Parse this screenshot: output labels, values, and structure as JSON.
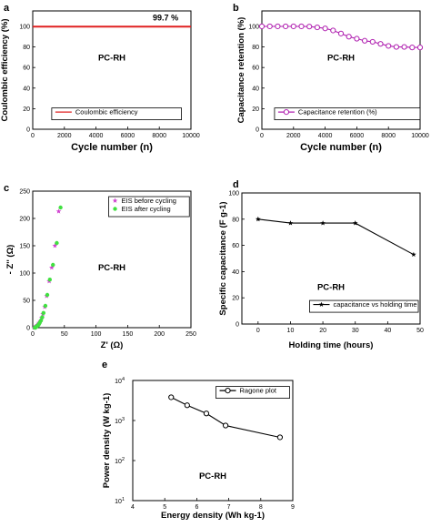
{
  "chart_data": [
    {
      "panel": "a",
      "type": "line",
      "title": "PC-RH",
      "xlabel": "Cycle number (n)",
      "ylabel": "Coulombic efficiency (%)",
      "xlim": [
        0,
        10000
      ],
      "ylim": [
        0,
        115
      ],
      "xticks": [
        0,
        2000,
        4000,
        6000,
        8000,
        10000
      ],
      "yticks": [
        0,
        20,
        40,
        60,
        80,
        100
      ],
      "annotation": "99.7 %",
      "legend": "bottom-right",
      "series": [
        {
          "name": "Coulombic efficiency",
          "color": "#e02020",
          "marker": "none",
          "x": [
            0,
            10000
          ],
          "y": [
            99.7,
            99.7
          ]
        }
      ]
    },
    {
      "panel": "b",
      "type": "line",
      "title": "PC-RH",
      "xlabel": "Cycle number (n)",
      "ylabel": "Capacitance retention (%)",
      "xlim": [
        0,
        10000
      ],
      "ylim": [
        0,
        115
      ],
      "xticks": [
        0,
        2000,
        4000,
        6000,
        8000,
        10000
      ],
      "yticks": [
        0,
        20,
        40,
        60,
        80,
        100
      ],
      "legend": "bottom-right",
      "series": [
        {
          "name": "Capacitance retention (%)",
          "color": "#b020b0",
          "marker": "circle",
          "x": [
            0,
            500,
            1000,
            1500,
            2000,
            2500,
            3000,
            3500,
            4000,
            4500,
            5000,
            5500,
            6000,
            6500,
            7000,
            7500,
            8000,
            8500,
            9000,
            9500,
            10000
          ],
          "y": [
            100,
            100,
            100,
            100,
            100,
            100,
            99.8,
            99,
            98,
            96,
            93,
            90,
            88,
            86,
            85,
            83,
            81,
            80,
            80,
            79.5,
            79.5
          ]
        }
      ]
    },
    {
      "panel": "c",
      "type": "scatter",
      "title": "PC-RH",
      "xlabel": "Z' (Ω)",
      "ylabel": "- Z'' (Ω)",
      "xlim": [
        0,
        250
      ],
      "ylim": [
        0,
        250
      ],
      "xticks": [
        0,
        50,
        100,
        150,
        200,
        250
      ],
      "yticks": [
        0,
        50,
        100,
        150,
        200,
        250
      ],
      "legend": "top-right",
      "series": [
        {
          "name": "EIS before cycling",
          "color": "#d040d0",
          "marker": "star",
          "x": [
            2,
            3,
            4,
            5,
            6,
            7,
            8,
            9,
            10,
            12,
            14,
            16,
            19,
            22,
            26,
            30,
            35,
            41
          ],
          "y": [
            0,
            0,
            1,
            2,
            3,
            4,
            5,
            7,
            9,
            12,
            18,
            25,
            38,
            58,
            85,
            110,
            150,
            213
          ]
        },
        {
          "name": "EIS after cycling",
          "color": "#40e040",
          "marker": "dot",
          "x": [
            3,
            4,
            5,
            6,
            7,
            8,
            9,
            10,
            11,
            13,
            15,
            17,
            20,
            23,
            27,
            32,
            38,
            44
          ],
          "y": [
            0,
            0,
            1,
            2,
            3,
            4,
            5,
            7,
            9,
            13,
            19,
            27,
            40,
            60,
            88,
            115,
            155,
            220
          ]
        }
      ]
    },
    {
      "panel": "d",
      "type": "line",
      "title": "PC-RH",
      "xlabel": "Holding time (hours)",
      "ylabel": "Specific capacitance (F g-1)",
      "xlim": [
        -5,
        50
      ],
      "ylim": [
        0,
        100
      ],
      "xticks": [
        0,
        10,
        20,
        30,
        40,
        50
      ],
      "yticks": [
        0,
        20,
        40,
        60,
        80,
        100
      ],
      "legend": "bottom-right",
      "series": [
        {
          "name": "capacitance vs holding time",
          "color": "#000000",
          "marker": "star",
          "x": [
            0,
            10,
            20,
            30,
            48
          ],
          "y": [
            80,
            77,
            77,
            77,
            53
          ]
        }
      ]
    },
    {
      "panel": "e",
      "type": "line",
      "title": "PC-RH",
      "xlabel": "Energy density (Wh kg-1)",
      "ylabel": "Power density (W kg-1)",
      "xlim": [
        4,
        9
      ],
      "ylim": [
        10,
        10000
      ],
      "yscale": "log",
      "xticks": [
        4,
        5,
        6,
        7,
        8,
        9
      ],
      "yticks": [
        10,
        100,
        1000,
        10000
      ],
      "legend": "top-right",
      "series": [
        {
          "name": "Ragone plot",
          "color": "#000000",
          "marker": "circle",
          "x": [
            5.2,
            5.7,
            6.3,
            6.9,
            8.6
          ],
          "y": [
            3800,
            2400,
            1500,
            750,
            380
          ]
        }
      ]
    }
  ]
}
